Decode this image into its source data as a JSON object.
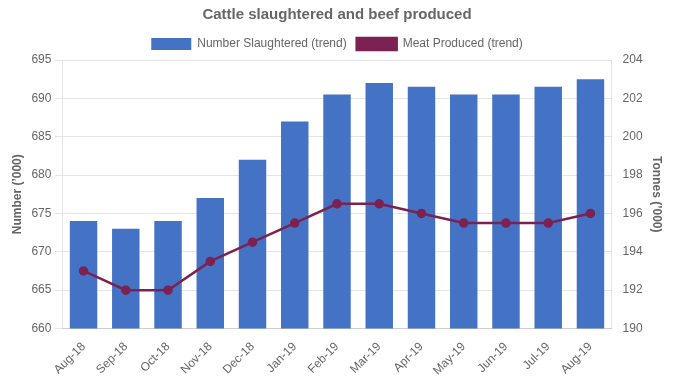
{
  "chart_data": {
    "type": "bar",
    "title": "Cattle slaughtered and beef produced",
    "categories": [
      "Aug-18",
      "Sep-18",
      "Oct-18",
      "Nov-18",
      "Dec-18",
      "Jan-19",
      "Feb-19",
      "Mar-19",
      "Apr-19",
      "May-19",
      "Jun-19",
      "Jul-19",
      "Aug-19"
    ],
    "series": [
      {
        "name": "Number Slaughtered (trend)",
        "type": "bar",
        "color": "#4472C4",
        "values": [
          674,
          673,
          674,
          677,
          682,
          687,
          690.5,
          692,
          691.5,
          690.5,
          690.5,
          691.5,
          692.5
        ]
      },
      {
        "name": "Meat Produced (trend)",
        "type": "line",
        "color": "#7B2252",
        "marker": "circle",
        "line_style": "solid",
        "axis": "y2",
        "values": [
          193.0,
          192.0,
          192.0,
          193.5,
          194.5,
          195.5,
          196.5,
          196.5,
          196.0,
          195.5,
          195.5,
          195.5,
          196.0
        ]
      }
    ],
    "ylabel": "Number (’000)",
    "y2label": "Tonnes (’000)",
    "ylim": [
      660,
      695
    ],
    "yticks": [
      660,
      665,
      670,
      675,
      680,
      685,
      690,
      695
    ],
    "y2lim": [
      190,
      204
    ],
    "y2ticks": [
      190,
      192,
      194,
      196,
      198,
      200,
      202,
      204
    ],
    "grid": true,
    "legend": "top"
  }
}
